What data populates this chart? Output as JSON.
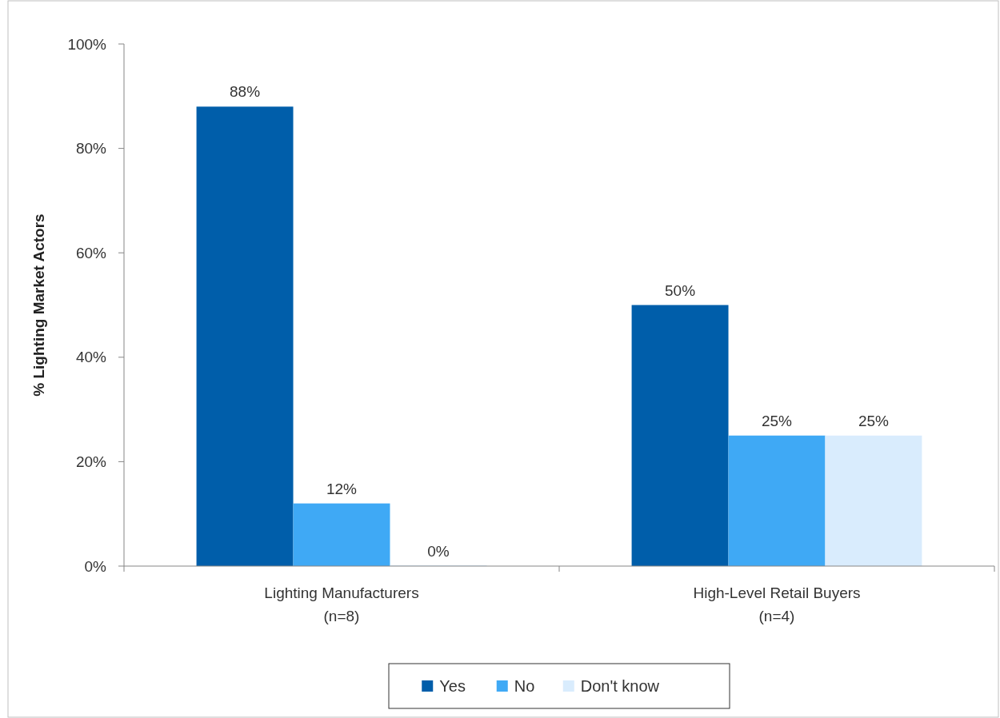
{
  "chart_data": {
    "type": "bar",
    "ylabel": "% Lighting Market Actors",
    "categories": [
      "Lighting Manufacturers\n(n=8)",
      "High-Level Retail Buyers\n(n=4)"
    ],
    "series": [
      {
        "name": "Yes",
        "color": "#005eaa",
        "values": [
          88,
          50
        ],
        "value_labels": [
          "88%",
          "50%"
        ]
      },
      {
        "name": "No",
        "color": "#3fa9f5",
        "values": [
          12,
          25
        ],
        "value_labels": [
          "12%",
          "25%"
        ]
      },
      {
        "name": "Don't know",
        "color": "#d9ecfd",
        "values": [
          0,
          25
        ],
        "value_labels": [
          "0%",
          "25%"
        ]
      }
    ],
    "ylim": [
      0,
      100
    ],
    "yticks": [
      {
        "value": 0,
        "label": "0%"
      },
      {
        "value": 20,
        "label": "20%"
      },
      {
        "value": 40,
        "label": "40%"
      },
      {
        "value": 60,
        "label": "60%"
      },
      {
        "value": 80,
        "label": "80%"
      },
      {
        "value": 100,
        "label": "100%"
      }
    ],
    "grid": false,
    "legend": "bottom"
  }
}
